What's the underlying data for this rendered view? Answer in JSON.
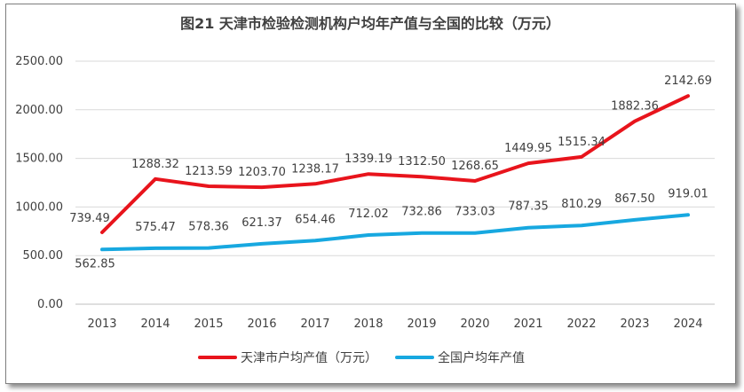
{
  "chart_data": {
    "type": "line",
    "title": "图21  天津市检验检测机构户均年产值与全国的比较（万元）",
    "categories": [
      "2013",
      "2014",
      "2015",
      "2016",
      "2017",
      "2018",
      "2019",
      "2020",
      "2021",
      "2022",
      "2023",
      "2024"
    ],
    "ylim": [
      0,
      2500
    ],
    "yticks": [
      "0.00",
      "500.00",
      "1000.00",
      "1500.00",
      "2000.00",
      "2500.00"
    ],
    "grid": true,
    "legend_position": "bottom",
    "series": [
      {
        "name": "天津市户均产值（万元）",
        "color": "#e8141c",
        "values": [
          739.49,
          1288.32,
          1213.59,
          1203.7,
          1238.17,
          1339.19,
          1312.5,
          1268.65,
          1449.95,
          1515.34,
          1882.36,
          2142.69
        ],
        "labels": [
          "739.49",
          "1288.32",
          "1213.59",
          "1203.70",
          "1238.17",
          "1339.19",
          "1312.50",
          "1268.65",
          "1449.95",
          "1515.34",
          "1882.36",
          "2142.69"
        ]
      },
      {
        "name": "全国户均年产值",
        "color": "#17a8e0",
        "values": [
          562.85,
          575.47,
          578.36,
          621.37,
          654.46,
          712.02,
          732.86,
          733.03,
          787.35,
          810.29,
          867.5,
          919.01
        ],
        "labels": [
          "562.85",
          "575.47",
          "578.36",
          "621.37",
          "654.46",
          "712.02",
          "732.86",
          "733.03",
          "787.35",
          "810.29",
          "867.50",
          "919.01"
        ]
      }
    ]
  }
}
